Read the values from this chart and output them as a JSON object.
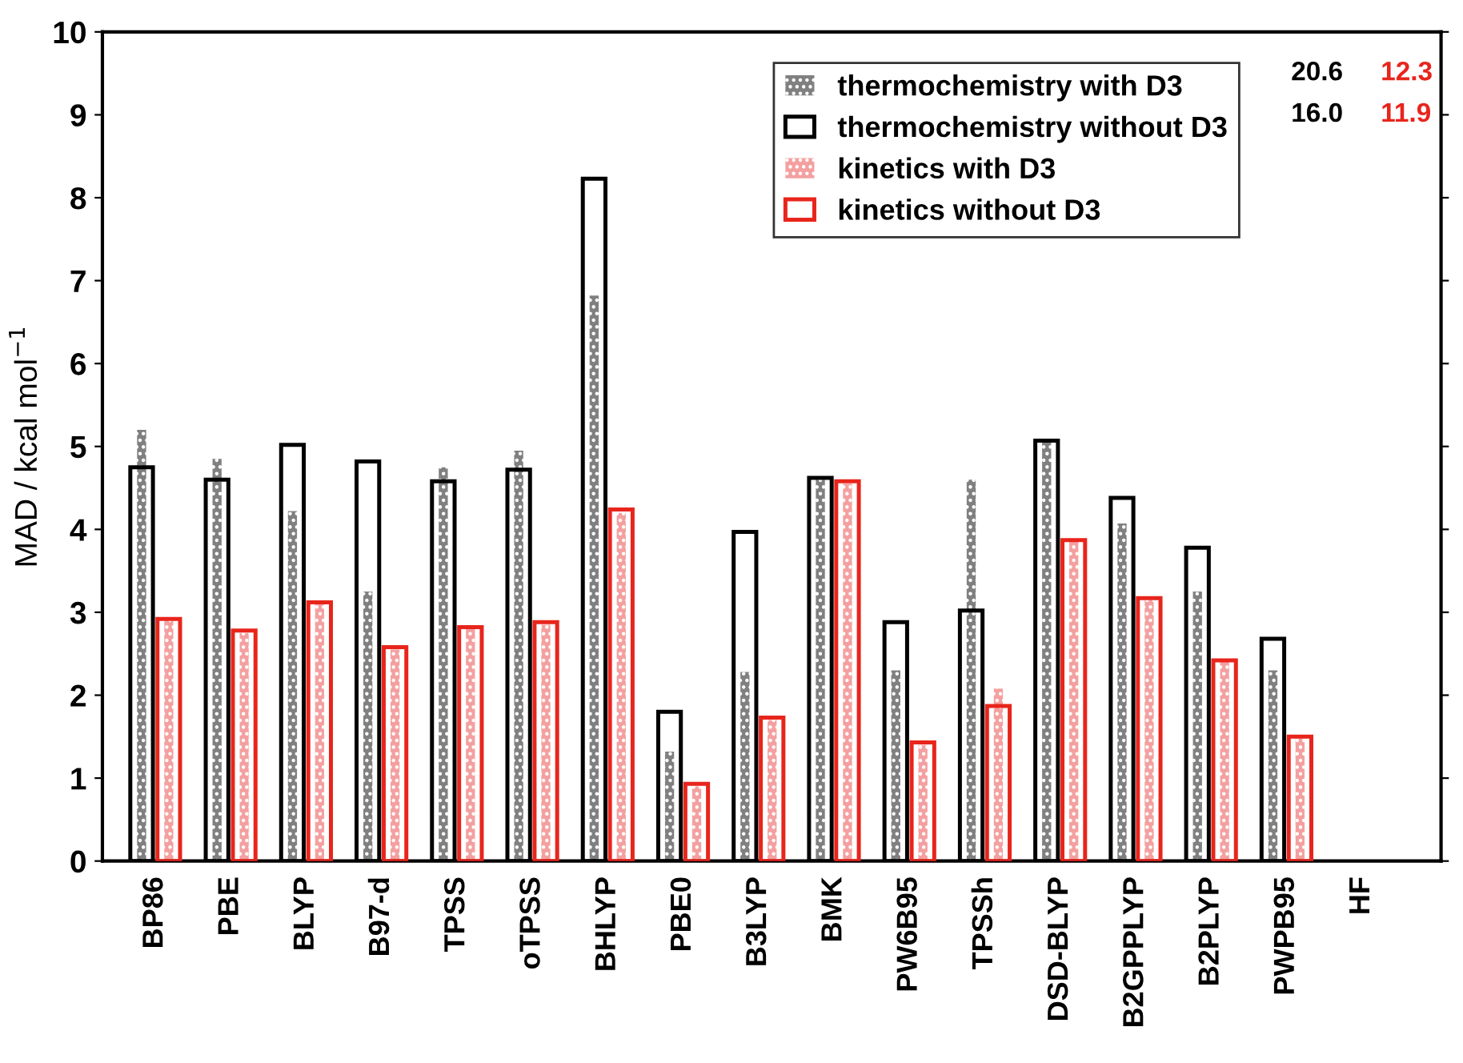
{
  "chart_data": {
    "type": "bar",
    "ylabel": "MAD / kcal mol$^{−1}$",
    "categories": [
      "BP86",
      "PBE",
      "BLYP",
      "B97-d",
      "TPSS",
      "oTPSS",
      "BHLYP",
      "PBE0",
      "B3LYP",
      "BMK",
      "PW6B95",
      "TPSSh",
      "DSD-BLYP",
      "B2GPPLYP",
      "B2PLYP",
      "PWPB95",
      "HF"
    ],
    "series": [
      {
        "name": "thermochemistry with D3",
        "color": "#808080",
        "values": [
          5.2,
          4.85,
          4.22,
          3.25,
          4.75,
          4.95,
          6.82,
          1.32,
          2.28,
          4.6,
          2.3,
          4.6,
          5.05,
          4.07,
          3.25,
          2.3,
          null
        ]
      },
      {
        "name": "thermochemistry without D3",
        "color": "#000000",
        "values": [
          4.75,
          4.6,
          5.02,
          4.82,
          4.58,
          4.72,
          8.23,
          1.8,
          3.97,
          4.62,
          2.88,
          3.02,
          5.07,
          4.38,
          3.78,
          2.68,
          null
        ]
      },
      {
        "name": "kinetics with D3",
        "color": "#f4a0a0",
        "values": [
          2.9,
          2.75,
          3.1,
          2.55,
          2.8,
          2.85,
          4.2,
          0.9,
          1.7,
          4.55,
          1.4,
          2.08,
          3.85,
          3.15,
          2.4,
          1.48,
          null
        ]
      },
      {
        "name": "kinetics without D3",
        "color": "#e8251c",
        "values": [
          2.92,
          2.78,
          3.12,
          2.58,
          2.82,
          2.88,
          4.24,
          0.93,
          1.73,
          4.58,
          1.43,
          1.87,
          3.87,
          3.17,
          2.42,
          1.5,
          null
        ]
      }
    ],
    "annotations": [
      "20.6",
      "16.0",
      "12.3",
      "11.9"
    ],
    "ylim": [
      0,
      10
    ],
    "yticks": [
      0,
      1,
      2,
      3,
      4,
      5,
      6,
      7,
      8,
      9,
      10
    ],
    "legend": "top right",
    "grid": false
  }
}
